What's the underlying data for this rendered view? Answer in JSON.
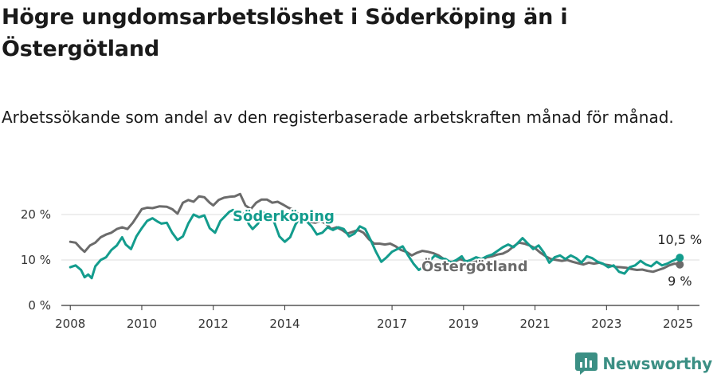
{
  "brand": {
    "name": "Newsworthy",
    "color": "#3b8f84"
  },
  "chart_data": {
    "type": "line",
    "title": "Högre ungdomsarbetslöshet i Söderköping än i Östergötland",
    "subtitle": "Arbetssökande som andel av den registerbaserade arbetskraften månad för månad.",
    "xlabel": "",
    "ylabel": "",
    "xlim": [
      2007.75,
      2025.6
    ],
    "ylim": [
      0,
      20
    ],
    "y_ticks": [
      {
        "value": 0,
        "label": "0 %"
      },
      {
        "value": 10,
        "label": "10 %"
      },
      {
        "value": 20,
        "label": "20 %"
      }
    ],
    "x_ticks": [
      {
        "value": 2008,
        "label": "2008"
      },
      {
        "value": 2010,
        "label": "2010"
      },
      {
        "value": 2012,
        "label": "2012"
      },
      {
        "value": 2014,
        "label": "2014"
      },
      {
        "value": 2017,
        "label": "2017"
      },
      {
        "value": 2019,
        "label": "2019"
      },
      {
        "value": 2021,
        "label": "2021"
      },
      {
        "value": 2023,
        "label": "2023"
      },
      {
        "value": 2025,
        "label": "2025"
      }
    ],
    "grid": true,
    "series": [
      {
        "name": "Östergötland",
        "color": "#6b6b6b",
        "end_label": "9 %",
        "points": [
          [
            2008.0,
            14.0
          ],
          [
            2008.15,
            13.8
          ],
          [
            2008.3,
            12.5
          ],
          [
            2008.4,
            11.8
          ],
          [
            2008.55,
            13.2
          ],
          [
            2008.7,
            13.8
          ],
          [
            2008.85,
            15.0
          ],
          [
            2009.0,
            15.6
          ],
          [
            2009.15,
            16.0
          ],
          [
            2009.3,
            16.8
          ],
          [
            2009.45,
            17.2
          ],
          [
            2009.6,
            16.8
          ],
          [
            2009.75,
            18.2
          ],
          [
            2009.9,
            20.0
          ],
          [
            2010.0,
            21.2
          ],
          [
            2010.15,
            21.5
          ],
          [
            2010.3,
            21.4
          ],
          [
            2010.5,
            21.8
          ],
          [
            2010.7,
            21.7
          ],
          [
            2010.85,
            21.2
          ],
          [
            2011.0,
            20.2
          ],
          [
            2011.15,
            22.6
          ],
          [
            2011.3,
            23.2
          ],
          [
            2011.45,
            22.8
          ],
          [
            2011.6,
            24.0
          ],
          [
            2011.75,
            23.8
          ],
          [
            2011.9,
            22.6
          ],
          [
            2012.0,
            22.0
          ],
          [
            2012.15,
            23.2
          ],
          [
            2012.3,
            23.7
          ],
          [
            2012.45,
            23.9
          ],
          [
            2012.6,
            24.0
          ],
          [
            2012.75,
            24.5
          ],
          [
            2012.9,
            22.0
          ],
          [
            2013.05,
            21.2
          ],
          [
            2013.2,
            22.6
          ],
          [
            2013.35,
            23.3
          ],
          [
            2013.5,
            23.3
          ],
          [
            2013.65,
            22.6
          ],
          [
            2013.8,
            22.8
          ],
          [
            2013.95,
            22.2
          ],
          [
            2014.1,
            21.5
          ],
          [
            2014.25,
            21.0
          ],
          [
            2014.4,
            20.0
          ],
          [
            2014.55,
            19.0
          ],
          [
            2014.7,
            18.4
          ],
          [
            2014.85,
            18.2
          ],
          [
            2015.0,
            18.6
          ],
          [
            2015.15,
            18.0
          ],
          [
            2015.3,
            16.8
          ],
          [
            2015.45,
            17.2
          ],
          [
            2015.6,
            16.6
          ],
          [
            2015.75,
            15.8
          ],
          [
            2015.9,
            16.2
          ],
          [
            2016.05,
            16.6
          ],
          [
            2016.2,
            16.0
          ],
          [
            2016.35,
            14.6
          ],
          [
            2016.5,
            13.6
          ],
          [
            2016.65,
            13.6
          ],
          [
            2016.8,
            13.4
          ],
          [
            2016.95,
            13.6
          ],
          [
            2017.1,
            13.0
          ],
          [
            2017.25,
            12.2
          ],
          [
            2017.4,
            11.8
          ],
          [
            2017.55,
            11.0
          ],
          [
            2017.7,
            11.6
          ],
          [
            2017.85,
            12.0
          ],
          [
            2018.0,
            11.8
          ],
          [
            2018.15,
            11.5
          ],
          [
            2018.3,
            11.0
          ],
          [
            2018.45,
            10.2
          ],
          [
            2018.6,
            9.6
          ],
          [
            2018.75,
            9.6
          ],
          [
            2018.9,
            10.2
          ],
          [
            2019.05,
            9.8
          ],
          [
            2019.2,
            9.4
          ],
          [
            2019.35,
            9.6
          ],
          [
            2019.5,
            10.0
          ],
          [
            2019.65,
            10.6
          ],
          [
            2019.8,
            10.8
          ],
          [
            2019.95,
            11.2
          ],
          [
            2020.1,
            11.4
          ],
          [
            2020.25,
            12.0
          ],
          [
            2020.4,
            13.0
          ],
          [
            2020.55,
            13.8
          ],
          [
            2020.7,
            13.6
          ],
          [
            2020.85,
            13.2
          ],
          [
            2021.0,
            12.6
          ],
          [
            2021.15,
            11.6
          ],
          [
            2021.3,
            10.8
          ],
          [
            2021.45,
            10.2
          ],
          [
            2021.6,
            10.0
          ],
          [
            2021.75,
            9.8
          ],
          [
            2021.9,
            10.0
          ],
          [
            2022.05,
            9.6
          ],
          [
            2022.2,
            9.3
          ],
          [
            2022.35,
            9.0
          ],
          [
            2022.5,
            9.4
          ],
          [
            2022.65,
            9.2
          ],
          [
            2022.8,
            9.4
          ],
          [
            2022.95,
            9.0
          ],
          [
            2023.1,
            8.8
          ],
          [
            2023.25,
            8.5
          ],
          [
            2023.4,
            8.4
          ],
          [
            2023.55,
            8.3
          ],
          [
            2023.7,
            8.0
          ],
          [
            2023.85,
            7.8
          ],
          [
            2024.0,
            7.9
          ],
          [
            2024.15,
            7.6
          ],
          [
            2024.3,
            7.4
          ],
          [
            2024.45,
            7.8
          ],
          [
            2024.6,
            8.2
          ],
          [
            2024.75,
            8.8
          ],
          [
            2024.9,
            9.2
          ],
          [
            2025.05,
            9.0
          ]
        ]
      },
      {
        "name": "Söderköping",
        "color": "#139c8d",
        "end_label": "10,5 %",
        "points": [
          [
            2008.0,
            8.4
          ],
          [
            2008.15,
            8.8
          ],
          [
            2008.3,
            7.8
          ],
          [
            2008.4,
            6.2
          ],
          [
            2008.5,
            6.8
          ],
          [
            2008.6,
            6.0
          ],
          [
            2008.7,
            8.6
          ],
          [
            2008.85,
            10.0
          ],
          [
            2009.0,
            10.6
          ],
          [
            2009.15,
            12.2
          ],
          [
            2009.3,
            13.2
          ],
          [
            2009.45,
            15.0
          ],
          [
            2009.55,
            13.4
          ],
          [
            2009.7,
            12.4
          ],
          [
            2009.85,
            15.2
          ],
          [
            2010.0,
            17.0
          ],
          [
            2010.15,
            18.6
          ],
          [
            2010.3,
            19.2
          ],
          [
            2010.45,
            18.4
          ],
          [
            2010.55,
            18.0
          ],
          [
            2010.7,
            18.2
          ],
          [
            2010.85,
            16.0
          ],
          [
            2011.0,
            14.4
          ],
          [
            2011.15,
            15.2
          ],
          [
            2011.3,
            18.0
          ],
          [
            2011.45,
            20.0
          ],
          [
            2011.6,
            19.4
          ],
          [
            2011.75,
            19.8
          ],
          [
            2011.9,
            17.0
          ],
          [
            2012.05,
            16.0
          ],
          [
            2012.2,
            18.6
          ],
          [
            2012.3,
            19.4
          ],
          [
            2012.45,
            20.6
          ],
          [
            2012.55,
            21.0
          ],
          [
            2012.7,
            19.6
          ],
          [
            2012.85,
            20.2
          ],
          [
            2013.0,
            17.8
          ],
          [
            2013.1,
            16.8
          ],
          [
            2013.25,
            18.0
          ],
          [
            2013.4,
            20.4
          ],
          [
            2013.55,
            19.8
          ],
          [
            2013.7,
            18.4
          ],
          [
            2013.85,
            15.2
          ],
          [
            2014.0,
            14.0
          ],
          [
            2014.15,
            15.0
          ],
          [
            2014.3,
            17.8
          ],
          [
            2014.45,
            19.6
          ],
          [
            2014.6,
            18.6
          ],
          [
            2014.75,
            17.4
          ],
          [
            2014.9,
            15.6
          ],
          [
            2015.05,
            16.0
          ],
          [
            2015.2,
            17.2
          ],
          [
            2015.35,
            16.6
          ],
          [
            2015.5,
            17.2
          ],
          [
            2015.65,
            16.8
          ],
          [
            2015.8,
            15.2
          ],
          [
            2015.95,
            15.8
          ],
          [
            2016.1,
            17.4
          ],
          [
            2016.25,
            16.8
          ],
          [
            2016.4,
            14.4
          ],
          [
            2016.55,
            11.8
          ],
          [
            2016.7,
            9.6
          ],
          [
            2016.85,
            10.6
          ],
          [
            2017.0,
            11.8
          ],
          [
            2017.15,
            12.4
          ],
          [
            2017.3,
            13.0
          ],
          [
            2017.45,
            11.0
          ],
          [
            2017.6,
            9.2
          ],
          [
            2017.75,
            7.8
          ],
          [
            2017.9,
            8.6
          ],
          [
            2018.05,
            9.8
          ],
          [
            2018.2,
            11.0
          ],
          [
            2018.35,
            10.4
          ],
          [
            2018.5,
            10.2
          ],
          [
            2018.65,
            9.4
          ],
          [
            2018.8,
            10.0
          ],
          [
            2018.95,
            10.8
          ],
          [
            2019.05,
            9.6
          ],
          [
            2019.2,
            10.0
          ],
          [
            2019.35,
            10.6
          ],
          [
            2019.5,
            10.2
          ],
          [
            2019.65,
            10.8
          ],
          [
            2019.8,
            11.2
          ],
          [
            2019.95,
            12.0
          ],
          [
            2020.1,
            12.8
          ],
          [
            2020.25,
            13.4
          ],
          [
            2020.4,
            12.8
          ],
          [
            2020.55,
            14.0
          ],
          [
            2020.65,
            14.8
          ],
          [
            2020.8,
            13.6
          ],
          [
            2020.95,
            12.4
          ],
          [
            2021.1,
            13.2
          ],
          [
            2021.25,
            11.6
          ],
          [
            2021.4,
            9.4
          ],
          [
            2021.55,
            10.6
          ],
          [
            2021.7,
            11.0
          ],
          [
            2021.85,
            10.2
          ],
          [
            2022.0,
            11.0
          ],
          [
            2022.15,
            10.4
          ],
          [
            2022.3,
            9.4
          ],
          [
            2022.45,
            10.8
          ],
          [
            2022.6,
            10.4
          ],
          [
            2022.75,
            9.6
          ],
          [
            2022.9,
            9.2
          ],
          [
            2023.05,
            8.4
          ],
          [
            2023.2,
            8.8
          ],
          [
            2023.35,
            7.4
          ],
          [
            2023.5,
            7.0
          ],
          [
            2023.65,
            8.4
          ],
          [
            2023.8,
            8.8
          ],
          [
            2023.95,
            9.8
          ],
          [
            2024.1,
            9.0
          ],
          [
            2024.25,
            8.6
          ],
          [
            2024.4,
            9.6
          ],
          [
            2024.55,
            8.8
          ],
          [
            2024.7,
            9.2
          ],
          [
            2024.85,
            9.8
          ],
          [
            2025.05,
            10.5
          ]
        ]
      }
    ]
  }
}
